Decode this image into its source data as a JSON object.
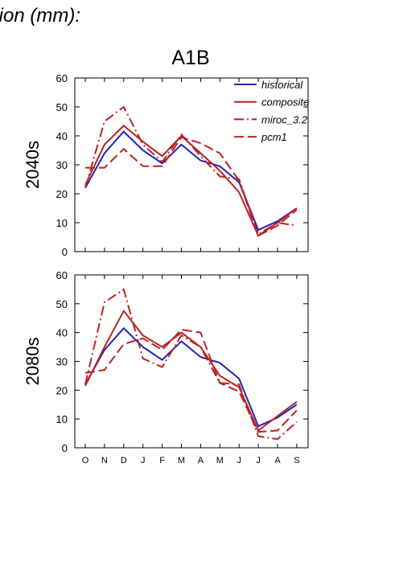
{
  "header": {
    "title": "tion (mm):"
  },
  "chart_data": [
    {
      "type": "line",
      "title": "A1B",
      "ylabel": "2040s",
      "ylim": [
        0,
        60
      ],
      "yticks": [
        0,
        10,
        20,
        30,
        40,
        50,
        60
      ],
      "legend": "upper right",
      "series": [
        {
          "name": "historical",
          "color": "#2222bb",
          "dash": "solid",
          "values": [
            22,
            34,
            41.5,
            35,
            30.5,
            37,
            31.5,
            29.5,
            24,
            7.5,
            10.5,
            15
          ]
        },
        {
          "name": "composite",
          "color": "#bb2222",
          "dash": "solid",
          "values": [
            23,
            37,
            43.5,
            38,
            33,
            40,
            34,
            28,
            20.5,
            5.5,
            10,
            15
          ]
        },
        {
          "name": "miroc_3.2",
          "color": "#bb2222",
          "dash": "dashdot",
          "values": [
            22,
            45,
            50,
            37,
            31,
            40.5,
            33,
            26,
            25,
            6,
            10,
            9
          ]
        },
        {
          "name": "pcm1",
          "color": "#bb2222",
          "dash": "dash",
          "values": [
            29,
            29,
            35.5,
            29.5,
            29.5,
            39.5,
            37.5,
            34,
            24.5,
            5.5,
            9,
            14.5
          ]
        }
      ]
    },
    {
      "type": "line",
      "ylabel": "2080s",
      "categories": [
        "O",
        "N",
        "D",
        "J",
        "F",
        "M",
        "A",
        "M",
        "J",
        "J",
        "A",
        "S"
      ],
      "ylim": [
        0,
        60
      ],
      "yticks": [
        0,
        10,
        20,
        30,
        40,
        50,
        60
      ],
      "series": [
        {
          "color": "#2222bb",
          "dash": "solid",
          "values": [
            22,
            34,
            41.5,
            35,
            30.5,
            37,
            31.5,
            29.5,
            24,
            7.5,
            10.5,
            15
          ]
        },
        {
          "color": "#bb2222",
          "dash": "solid",
          "values": [
            21.5,
            35,
            47.5,
            39,
            35,
            40,
            35,
            25,
            21,
            6,
            11,
            16
          ]
        },
        {
          "color": "#bb2222",
          "dash": "dashdot",
          "values": [
            22,
            50.5,
            55,
            31,
            28,
            39,
            35,
            22.5,
            22,
            4,
            3,
            9
          ]
        },
        {
          "color": "#bb2222",
          "dash": "dash",
          "values": [
            26,
            27,
            36,
            38,
            34,
            41,
            40,
            22.5,
            19.5,
            5.5,
            6,
            13
          ]
        }
      ]
    }
  ]
}
